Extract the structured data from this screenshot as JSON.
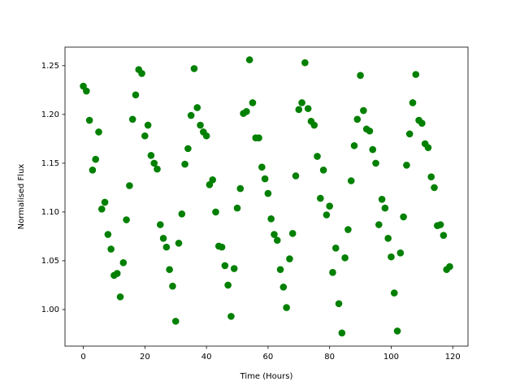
{
  "chart_data": {
    "type": "scatter",
    "xlabel": "Time (Hours)",
    "ylabel": "Normalised Flux",
    "color": "#008000",
    "x": [
      0,
      1,
      2,
      3,
      4,
      5,
      6,
      7,
      8,
      9,
      10,
      11,
      12,
      13,
      14,
      15,
      16,
      17,
      18,
      19,
      20,
      21,
      22,
      23,
      24,
      25,
      26,
      27,
      28,
      29,
      30,
      31,
      32,
      33,
      34,
      35,
      36,
      37,
      38,
      39,
      40,
      41,
      42,
      43,
      44,
      45,
      46,
      47,
      48,
      49,
      50,
      51,
      52,
      53,
      54,
      55,
      56,
      57,
      58,
      59,
      60,
      61,
      62,
      63,
      64,
      65,
      66,
      67,
      68,
      69,
      70,
      71,
      72,
      73,
      74,
      75,
      76,
      77,
      78,
      79,
      80,
      81,
      82,
      83,
      84,
      85,
      86,
      87,
      88,
      89,
      90,
      91,
      92,
      93,
      94,
      95,
      96,
      97,
      98,
      99,
      100,
      101,
      102,
      103,
      104,
      105,
      106,
      107,
      108,
      109,
      110,
      111,
      112,
      113,
      114,
      115,
      116,
      117,
      118,
      119
    ],
    "y": [
      1.229,
      1.224,
      1.194,
      1.143,
      1.154,
      1.182,
      1.103,
      1.11,
      1.077,
      1.062,
      1.035,
      1.037,
      1.013,
      1.048,
      1.092,
      1.127,
      1.195,
      1.22,
      1.246,
      1.242,
      1.178,
      1.189,
      1.158,
      1.15,
      1.144,
      1.087,
      1.073,
      1.064,
      1.041,
      1.024,
      0.988,
      1.068,
      1.098,
      1.149,
      1.165,
      1.199,
      1.247,
      1.207,
      1.189,
      1.182,
      1.178,
      1.128,
      1.133,
      1.1,
      1.065,
      1.064,
      1.045,
      1.025,
      0.993,
      1.042,
      1.104,
      1.124,
      1.201,
      1.203,
      1.256,
      1.212,
      1.176,
      1.176,
      1.146,
      1.134,
      1.119,
      1.093,
      1.077,
      1.071,
      1.041,
      1.023,
      1.002,
      1.052,
      1.078,
      1.137,
      1.205,
      1.212,
      1.253,
      1.206,
      1.193,
      1.189,
      1.157,
      1.114,
      1.143,
      1.097,
      1.106,
      1.038,
      1.063,
      1.006,
      0.976,
      1.053,
      1.082,
      1.132,
      1.168,
      1.195,
      1.24,
      1.204,
      1.185,
      1.183,
      1.164,
      1.15,
      1.087,
      1.113,
      1.104,
      1.073,
      1.054,
      1.017,
      0.978,
      1.058,
      1.095,
      1.148,
      1.18,
      1.212,
      1.241,
      1.194,
      1.191,
      1.17,
      1.166,
      1.136,
      1.125,
      1.086,
      1.087,
      1.076,
      1.041,
      1.044
    ],
    "xlim": [
      -5.95,
      124.95
    ],
    "xticks": [
      0,
      20,
      40,
      60,
      80,
      100,
      120
    ],
    "ylim": [
      0.9625,
      1.269
    ],
    "yticks": [
      {
        "value": 1,
        "label": "1.00"
      },
      1.05,
      {
        "value": 1.1,
        "label": "1.10"
      },
      1.15,
      {
        "value": 1.2,
        "label": "1.20"
      },
      1.25
    ]
  }
}
